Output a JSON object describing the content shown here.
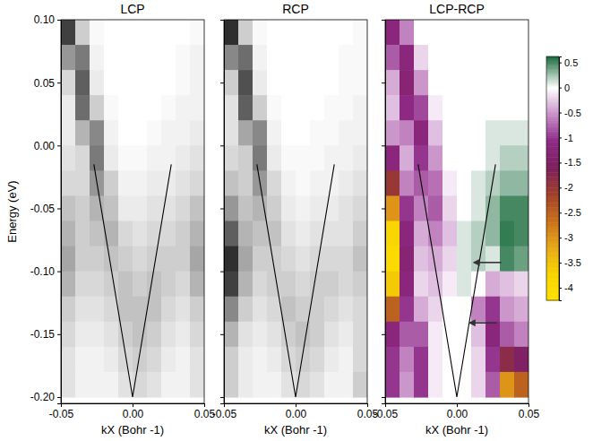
{
  "chart_data": [
    {
      "type": "heatmap",
      "title": "LCP",
      "xlabel": "kX (Bohr -1)",
      "ylabel": "Energy (eV)",
      "xlim": [
        -0.05,
        0.05
      ],
      "ylim": [
        -0.205,
        0.1
      ],
      "xticks": [
        -0.05,
        {
          "value": 0,
          "label": "0.00"
        },
        0.05
      ],
      "yticks": [
        {
          "value": 0.1,
          "label": "0.10"
        },
        0.05,
        {
          "value": 0,
          "label": "0.00"
        },
        -0.05,
        {
          "value": -0.1,
          "label": "-0.10"
        },
        -0.15,
        {
          "value": -0.2,
          "label": "-0.20"
        }
      ],
      "x": [
        -0.045,
        -0.035,
        -0.025,
        -0.015,
        -0.005,
        0.005,
        0.015,
        0.025,
        0.035,
        0.045
      ],
      "y": [
        0.09,
        0.07,
        0.05,
        0.03,
        0.01,
        -0.01,
        -0.03,
        -0.05,
        -0.07,
        -0.09,
        -0.11,
        -0.13,
        -0.15,
        -0.17,
        -0.19
      ],
      "z": [
        [
          0.8,
          0.3,
          0.05,
          0,
          0,
          0,
          0,
          0,
          0,
          0.05
        ],
        [
          0.5,
          0.6,
          0.1,
          0,
          0,
          0,
          0,
          0,
          0.05,
          0.1
        ],
        [
          0.25,
          0.7,
          0.15,
          0,
          0,
          0,
          0,
          0,
          0.05,
          0.1
        ],
        [
          0.15,
          0.65,
          0.3,
          0.05,
          0,
          0,
          0,
          0.05,
          0.1,
          0.1
        ],
        [
          0.15,
          0.4,
          0.55,
          0.1,
          0,
          0,
          0.05,
          0.1,
          0.1,
          0.15
        ],
        [
          0.2,
          0.25,
          0.6,
          0.15,
          0.05,
          0.05,
          0.1,
          0.1,
          0.15,
          0.2
        ],
        [
          0.25,
          0.25,
          0.5,
          0.3,
          0.1,
          0.1,
          0.15,
          0.15,
          0.2,
          0.25
        ],
        [
          0.35,
          0.3,
          0.4,
          0.35,
          0.15,
          0.15,
          0.2,
          0.2,
          0.25,
          0.35
        ],
        [
          0.4,
          0.3,
          0.35,
          0.4,
          0.25,
          0.2,
          0.25,
          0.25,
          0.3,
          0.4
        ],
        [
          0.45,
          0.3,
          0.3,
          0.35,
          0.3,
          0.25,
          0.3,
          0.3,
          0.3,
          0.45
        ],
        [
          0.4,
          0.25,
          0.25,
          0.3,
          0.35,
          0.3,
          0.35,
          0.3,
          0.25,
          0.4
        ],
        [
          0.3,
          0.2,
          0.2,
          0.25,
          0.35,
          0.35,
          0.35,
          0.25,
          0.2,
          0.3
        ],
        [
          0.25,
          0.15,
          0.15,
          0.2,
          0.3,
          0.35,
          0.3,
          0.2,
          0.15,
          0.25
        ],
        [
          0.2,
          0.1,
          0.1,
          0.15,
          0.25,
          0.3,
          0.25,
          0.15,
          0.1,
          0.2
        ],
        [
          0.2,
          0.1,
          0.1,
          0.1,
          0.2,
          0.25,
          0.2,
          0.1,
          0.1,
          0.2
        ]
      ],
      "series": [
        {
          "type": "line",
          "color": "#000000",
          "x": [
            -0.027,
            0,
            0.027
          ],
          "values": [
            -0.015,
            -0.2,
            -0.015
          ]
        }
      ]
    },
    {
      "type": "heatmap",
      "title": "RCP",
      "xlabel": "kX (Bohr -1)",
      "tick_labels": "x",
      "xlim": [
        -0.05,
        0.05
      ],
      "ylim": [
        -0.205,
        0.1
      ],
      "xticks": [
        -0.05,
        {
          "value": 0,
          "label": "0.00"
        },
        0.05
      ],
      "yticks": [
        0.1,
        0.05,
        0,
        -0.05,
        -0.1,
        -0.15,
        -0.2
      ],
      "x": [
        -0.045,
        -0.035,
        -0.025,
        -0.015,
        -0.005,
        0.005,
        0.015,
        0.025,
        0.035,
        0.045
      ],
      "y": [
        0.09,
        0.07,
        0.05,
        0.03,
        0.01,
        -0.01,
        -0.03,
        -0.05,
        -0.07,
        -0.09,
        -0.11,
        -0.13,
        -0.15,
        -0.17,
        -0.19
      ],
      "z": [
        [
          0.85,
          0.3,
          0.05,
          0,
          0,
          0,
          0,
          0,
          0,
          0.05
        ],
        [
          0.55,
          0.65,
          0.1,
          0,
          0,
          0,
          0,
          0,
          0.05,
          0.05
        ],
        [
          0.3,
          0.75,
          0.15,
          0,
          0,
          0,
          0,
          0,
          0.05,
          0.05
        ],
        [
          0.2,
          0.7,
          0.3,
          0.05,
          0,
          0,
          0,
          0.05,
          0.05,
          0.1
        ],
        [
          0.2,
          0.45,
          0.55,
          0.1,
          0,
          0,
          0.05,
          0.05,
          0.1,
          0.1
        ],
        [
          0.25,
          0.3,
          0.6,
          0.15,
          0.05,
          0.05,
          0.05,
          0.1,
          0.1,
          0.15
        ],
        [
          0.35,
          0.3,
          0.5,
          0.25,
          0.1,
          0.05,
          0.1,
          0.1,
          0.15,
          0.2
        ],
        [
          0.5,
          0.35,
          0.4,
          0.3,
          0.15,
          0.1,
          0.15,
          0.15,
          0.2,
          0.25
        ],
        [
          0.7,
          0.4,
          0.35,
          0.35,
          0.2,
          0.15,
          0.2,
          0.2,
          0.2,
          0.3
        ],
        [
          0.85,
          0.45,
          0.3,
          0.3,
          0.25,
          0.2,
          0.25,
          0.25,
          0.25,
          0.35
        ],
        [
          0.8,
          0.4,
          0.25,
          0.3,
          0.3,
          0.25,
          0.3,
          0.3,
          0.25,
          0.3
        ],
        [
          0.55,
          0.3,
          0.2,
          0.25,
          0.35,
          0.3,
          0.3,
          0.25,
          0.2,
          0.25
        ],
        [
          0.4,
          0.2,
          0.15,
          0.2,
          0.3,
          0.35,
          0.3,
          0.2,
          0.15,
          0.25
        ],
        [
          0.3,
          0.15,
          0.1,
          0.15,
          0.25,
          0.3,
          0.25,
          0.15,
          0.1,
          0.25
        ],
        [
          0.3,
          0.15,
          0.1,
          0.1,
          0.2,
          0.25,
          0.2,
          0.1,
          0.1,
          0.3
        ]
      ],
      "series": [
        {
          "type": "line",
          "color": "#000000",
          "x": [
            -0.027,
            0,
            0.027
          ],
          "values": [
            -0.015,
            -0.2,
            -0.015
          ]
        }
      ]
    },
    {
      "type": "heatmap",
      "title": "LCP-RCP",
      "xlabel": "kX (Bohr -1)",
      "tick_labels": "x",
      "xlim": [
        -0.05,
        0.05
      ],
      "ylim": [
        -0.205,
        0.1
      ],
      "xticks": [
        -0.05,
        {
          "value": 0,
          "label": "0.00"
        },
        0.05
      ],
      "yticks": [
        0.1,
        0.05,
        0,
        -0.05,
        -0.1,
        -0.15,
        -0.2
      ],
      "x": [
        -0.045,
        -0.035,
        -0.025,
        -0.015,
        -0.005,
        0.005,
        0.015,
        0.025,
        0.035,
        0.045
      ],
      "y": [
        0.09,
        0.07,
        0.05,
        0.03,
        0.01,
        -0.01,
        -0.03,
        -0.05,
        -0.07,
        -0.09,
        -0.11,
        -0.13,
        -0.15,
        -0.17,
        -0.19
      ],
      "z": [
        [
          -1.2,
          -0.6,
          0,
          0,
          0,
          0,
          0,
          0,
          0,
          0
        ],
        [
          -0.8,
          -1.2,
          -0.2,
          0,
          0,
          0,
          0,
          0,
          0,
          0
        ],
        [
          -0.4,
          -1.3,
          -0.5,
          0,
          0,
          0,
          0,
          0,
          0,
          0
        ],
        [
          -0.3,
          -1.1,
          -0.9,
          -0.1,
          0,
          0,
          0,
          0,
          0,
          0
        ],
        [
          -0.5,
          -0.6,
          -1.2,
          -0.3,
          0,
          0,
          0,
          0.1,
          0.1,
          0.1
        ],
        [
          -1.2,
          -0.4,
          -1.0,
          -0.5,
          0,
          0,
          0,
          0.1,
          0.2,
          0.2
        ],
        [
          -2.0,
          -0.6,
          -0.8,
          -0.7,
          -0.1,
          0,
          0.1,
          0.2,
          0.3,
          0.3
        ],
        [
          -3.0,
          -1.0,
          -0.6,
          -0.8,
          -0.2,
          0,
          0.1,
          0.3,
          0.5,
          0.5
        ],
        [
          -3.8,
          -1.2,
          -0.4,
          -0.6,
          -0.3,
          0.1,
          0.2,
          0.3,
          0.55,
          0.5
        ],
        [
          -4.0,
          -1.3,
          -0.3,
          -0.4,
          -0.2,
          0.1,
          0.2,
          0.1,
          0.5,
          0.4
        ],
        [
          -3.6,
          -1.2,
          -0.2,
          -0.3,
          -0.1,
          0.1,
          0,
          -0.4,
          -0.3,
          -0.2
        ],
        [
          -2.5,
          -1.0,
          -0.4,
          -0.2,
          0,
          0,
          -0.6,
          -1.0,
          -0.5,
          -0.4
        ],
        [
          -1.2,
          -0.8,
          -0.8,
          -0.1,
          0,
          0,
          -0.3,
          -1.2,
          -0.8,
          -0.6
        ],
        [
          -1.0,
          -0.6,
          -1.0,
          -0.1,
          0,
          0,
          -0.2,
          -1.0,
          -1.8,
          -1.5
        ],
        [
          -1.0,
          -0.5,
          -1.0,
          -0.1,
          0,
          0,
          -0.2,
          -0.8,
          -3.0,
          -2.5
        ]
      ],
      "colorbar": {
        "range": [
          -4.25,
          0.62
        ],
        "ticks": [
          0.5,
          0,
          -0.5,
          -1,
          -1.5,
          -2,
          -2.5,
          -3,
          -3.5,
          -4
        ]
      },
      "series": [
        {
          "type": "line",
          "color": "#000000",
          "x": [
            -0.027,
            0,
            0.027
          ],
          "values": [
            -0.015,
            -0.2,
            -0.015
          ]
        }
      ],
      "annotations": [
        {
          "type": "arrow",
          "x": [
            0.031,
            0.012
          ],
          "y": [
            -0.093,
            -0.093
          ]
        },
        {
          "type": "arrow",
          "x": [
            0.028,
            0.009
          ],
          "y": [
            -0.141,
            -0.141
          ]
        }
      ]
    }
  ]
}
